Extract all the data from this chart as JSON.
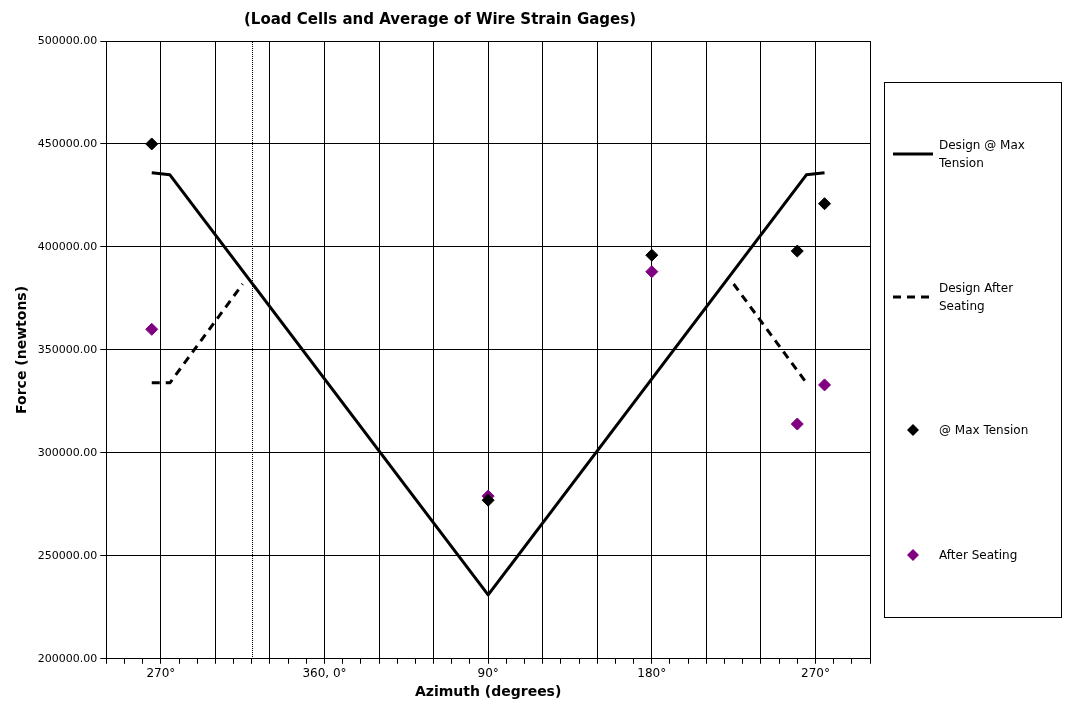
{
  "chart_data": {
    "type": "line",
    "title": "(Load Cells and Average of Wire Strain Gages)",
    "xlabel": "Azimuth (degrees)",
    "ylabel": "Force (newtons)",
    "categories": [
      null,
      null,
      null,
      null,
      null,
      null,
      "270°",
      null,
      null,
      null,
      null,
      null,
      null,
      null,
      null,
      null,
      null,
      null,
      null,
      null,
      null,
      null,
      null,
      null,
      "360, 0°",
      null,
      null,
      null,
      null,
      null,
      null,
      null,
      null,
      null,
      null,
      null,
      null,
      null,
      null,
      null,
      null,
      null,
      "90°",
      null,
      null,
      null,
      null,
      null,
      null,
      null,
      null,
      null,
      null,
      null,
      null,
      null,
      null,
      null,
      null,
      null,
      "180°",
      null,
      null,
      null,
      null,
      null,
      null,
      null,
      null,
      null,
      null,
      null,
      null,
      null,
      null,
      null,
      null,
      null,
      "270°",
      null,
      null,
      null,
      null,
      null,
      null
    ],
    "ylim": [
      200000,
      500000
    ],
    "yticks": [
      {
        "value": 200000,
        "label": "200000.00"
      },
      {
        "value": 250000,
        "label": "250000.00"
      },
      {
        "value": 300000,
        "label": "300000.00"
      },
      {
        "value": 350000,
        "label": "350000.00"
      },
      {
        "value": 400000,
        "label": "400000.00"
      },
      {
        "value": 450000,
        "label": "450000.00"
      },
      {
        "value": 500000,
        "label": "500000.00"
      }
    ],
    "grid": true,
    "legend": "right",
    "series": [
      {
        "name": "Design @ Max Tension",
        "color": "#000000",
        "line_style": "solid",
        "marker": "none",
        "values": [
          null,
          null,
          null,
          null,
          null,
          436000,
          null,
          435000,
          null,
          null,
          null,
          null,
          null,
          null,
          null,
          null,
          null,
          null,
          null,
          null,
          null,
          null,
          null,
          null,
          null,
          null,
          null,
          null,
          null,
          null,
          null,
          null,
          null,
          null,
          null,
          null,
          null,
          null,
          null,
          null,
          null,
          null,
          231000,
          null,
          null,
          null,
          null,
          null,
          null,
          null,
          null,
          null,
          null,
          null,
          null,
          null,
          null,
          null,
          null,
          null,
          null,
          null,
          null,
          null,
          null,
          null,
          null,
          null,
          null,
          null,
          null,
          null,
          null,
          null,
          null,
          null,
          null,
          435000,
          null,
          436000,
          null,
          null,
          null,
          null,
          null
        ]
      },
      {
        "name": "Design After Seating",
        "color": "#000000",
        "line_style": "dashed",
        "marker": "none",
        "values": [
          null,
          null,
          null,
          null,
          null,
          334000,
          null,
          334000,
          null,
          null,
          null,
          null,
          null,
          null,
          null,
          382000,
          null,
          null,
          null,
          null,
          null,
          null,
          null,
          null,
          null,
          null,
          null,
          null,
          null,
          null,
          null,
          null,
          null,
          null,
          null,
          null,
          null,
          null,
          null,
          null,
          null,
          null,
          null,
          null,
          null,
          null,
          null,
          null,
          null,
          null,
          null,
          null,
          null,
          null,
          null,
          null,
          null,
          null,
          null,
          null,
          null,
          null,
          null,
          null,
          null,
          null,
          null,
          null,
          null,
          null,
          null,
          null,
          null,
          null,
          null,
          null,
          null,
          null,
          null,
          null,
          null,
          null,
          null,
          null,
          null
        ]
      },
      {
        "color": "#000000",
        "line_style": "dashed",
        "marker": "none",
        "values": [
          null,
          null,
          null,
          null,
          null,
          null,
          null,
          null,
          null,
          null,
          null,
          null,
          null,
          null,
          null,
          null,
          null,
          null,
          null,
          null,
          null,
          null,
          null,
          null,
          null,
          null,
          null,
          null,
          null,
          null,
          null,
          null,
          null,
          null,
          null,
          null,
          null,
          null,
          null,
          null,
          null,
          null,
          null,
          null,
          null,
          null,
          null,
          null,
          null,
          null,
          null,
          null,
          null,
          null,
          null,
          null,
          null,
          null,
          null,
          null,
          null,
          null,
          null,
          null,
          null,
          null,
          null,
          null,
          null,
          382000,
          null,
          null,
          null,
          null,
          null,
          null,
          null,
          334000,
          null,
          null,
          null,
          null,
          null,
          null,
          null
        ]
      },
      {
        "name": "@ Max Tension",
        "type": "scatter",
        "color": "#000000",
        "marker": "diamond",
        "values": [
          null,
          null,
          null,
          null,
          null,
          450000,
          null,
          null,
          null,
          null,
          null,
          null,
          null,
          null,
          null,
          null,
          null,
          null,
          null,
          null,
          null,
          null,
          null,
          null,
          null,
          null,
          null,
          null,
          null,
          null,
          null,
          null,
          null,
          null,
          null,
          null,
          null,
          null,
          null,
          null,
          null,
          null,
          277000,
          null,
          null,
          null,
          null,
          null,
          null,
          null,
          null,
          null,
          null,
          null,
          null,
          null,
          null,
          null,
          null,
          null,
          396000,
          null,
          null,
          null,
          null,
          null,
          null,
          null,
          null,
          null,
          null,
          null,
          null,
          null,
          null,
          null,
          398000,
          null,
          null,
          421000,
          null,
          null,
          null,
          null,
          null
        ]
      },
      {
        "name": "After Seating",
        "type": "scatter",
        "color": "#800080",
        "marker": "diamond",
        "values": [
          null,
          null,
          null,
          null,
          null,
          360000,
          null,
          null,
          null,
          null,
          null,
          null,
          null,
          null,
          null,
          null,
          null,
          null,
          null,
          null,
          null,
          null,
          null,
          null,
          null,
          null,
          null,
          null,
          null,
          null,
          null,
          null,
          null,
          null,
          null,
          null,
          null,
          null,
          null,
          null,
          null,
          null,
          279000,
          null,
          null,
          null,
          null,
          null,
          null,
          null,
          null,
          null,
          null,
          null,
          null,
          null,
          null,
          null,
          null,
          null,
          388000,
          null,
          null,
          null,
          null,
          null,
          null,
          null,
          null,
          null,
          null,
          null,
          null,
          null,
          null,
          null,
          314000,
          null,
          null,
          333000,
          null,
          null,
          null,
          null,
          null
        ]
      }
    ]
  }
}
